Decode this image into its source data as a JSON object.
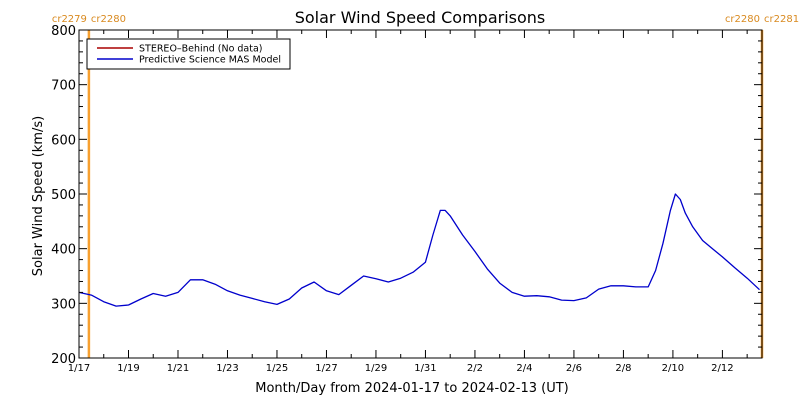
{
  "chart_data": {
    "type": "line",
    "title": "Solar Wind Speed Comparisons",
    "xlabel": "Month/Day from 2024-01-17 to 2024-02-13 (UT)",
    "ylabel": "Solar Wind Speed (km/s)",
    "ylim": [
      200,
      800
    ],
    "xlim": [
      0,
      27.6
    ],
    "grid": false,
    "legend_position": "top-left",
    "x_ticks": [
      {
        "label": "1/17",
        "day": 0
      },
      {
        "label": "1/19",
        "day": 2
      },
      {
        "label": "1/21",
        "day": 4
      },
      {
        "label": "1/23",
        "day": 6
      },
      {
        "label": "1/25",
        "day": 8
      },
      {
        "label": "1/27",
        "day": 10
      },
      {
        "label": "1/29",
        "day": 12
      },
      {
        "label": "1/31",
        "day": 14
      },
      {
        "label": "2/2",
        "day": 16
      },
      {
        "label": "2/4",
        "day": 18
      },
      {
        "label": "2/6",
        "day": 20
      },
      {
        "label": "2/8",
        "day": 22
      },
      {
        "label": "2/10",
        "day": 24
      },
      {
        "label": "2/12",
        "day": 26
      }
    ],
    "y_ticks": [
      200,
      300,
      400,
      500,
      600,
      700,
      800
    ],
    "carrington_markers": [
      {
        "day": 0.4,
        "left_label": "cr2279",
        "right_label": "cr2280"
      },
      {
        "day": 27.6,
        "left_label": "cr2280",
        "right_label": "cr2281"
      }
    ],
    "series": [
      {
        "name": "STEREO–Behind (No data)",
        "color": "#aa0000",
        "x": [],
        "y": []
      },
      {
        "name": "Predictive Science MAS Model",
        "color": "#0000cc",
        "x": [
          0.0,
          0.5,
          1.0,
          1.5,
          2.0,
          2.5,
          3.0,
          3.5,
          4.0,
          4.5,
          5.0,
          5.5,
          6.0,
          6.5,
          7.0,
          7.5,
          8.0,
          8.5,
          9.0,
          9.5,
          10.0,
          10.5,
          11.0,
          11.5,
          12.0,
          12.5,
          13.0,
          13.5,
          14.0,
          14.3,
          14.6,
          14.8,
          15.0,
          15.5,
          16.0,
          16.5,
          17.0,
          17.5,
          18.0,
          18.5,
          19.0,
          19.5,
          20.0,
          20.5,
          21.0,
          21.5,
          22.0,
          22.5,
          23.0,
          23.3,
          23.6,
          23.9,
          24.1,
          24.3,
          24.5,
          24.8,
          25.2,
          25.6,
          26.0,
          26.5,
          27.0,
          27.5
        ],
        "y": [
          320,
          315,
          303,
          295,
          297,
          308,
          318,
          313,
          320,
          343,
          343,
          335,
          323,
          315,
          309,
          303,
          298,
          308,
          328,
          339,
          323,
          316,
          333,
          350,
          345,
          339,
          346,
          357,
          375,
          425,
          470,
          470,
          460,
          425,
          395,
          363,
          337,
          320,
          313,
          314,
          312,
          306,
          305,
          310,
          326,
          332,
          332,
          330,
          330,
          360,
          410,
          470,
          500,
          490,
          465,
          440,
          415,
          400,
          385,
          365,
          346,
          325
        ]
      }
    ]
  }
}
